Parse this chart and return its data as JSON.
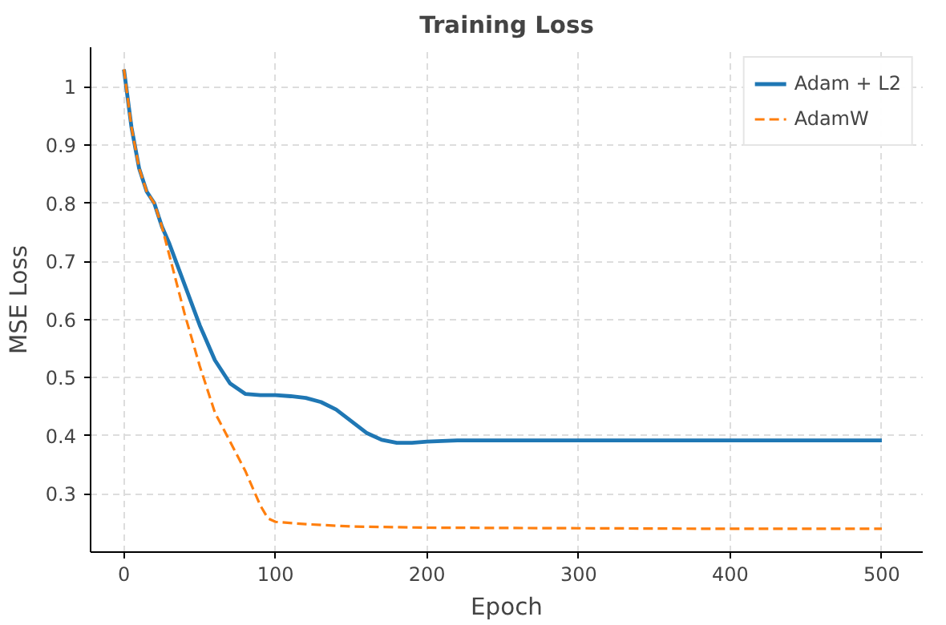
{
  "chart_data": {
    "type": "line",
    "title": "Training Loss",
    "xlabel": "Epoch",
    "ylabel": "MSE Loss",
    "xlim": [
      -22,
      527
    ],
    "ylim": [
      0.2,
      1.068
    ],
    "xticks": [
      0,
      100,
      200,
      300,
      400,
      500
    ],
    "yticks": [
      0.3,
      0.4,
      0.5,
      0.6,
      0.7,
      0.8,
      0.9,
      1.0
    ],
    "grid": true,
    "legend": "top right",
    "series": [
      {
        "name": "Adam + L2",
        "color": "#1f77b4",
        "line_style": "solid",
        "x": [
          0,
          5,
          10,
          15,
          20,
          25,
          30,
          40,
          50,
          60,
          70,
          80,
          90,
          100,
          110,
          120,
          130,
          140,
          150,
          160,
          170,
          180,
          190,
          200,
          220,
          250,
          300,
          400,
          500
        ],
        "values": [
          1.03,
          0.93,
          0.86,
          0.82,
          0.8,
          0.76,
          0.73,
          0.66,
          0.59,
          0.53,
          0.49,
          0.472,
          0.47,
          0.47,
          0.468,
          0.465,
          0.458,
          0.445,
          0.425,
          0.405,
          0.393,
          0.388,
          0.388,
          0.39,
          0.392,
          0.392,
          0.392,
          0.392,
          0.392
        ]
      },
      {
        "name": "AdamW",
        "color": "#ff7f0e",
        "line_style": "dashed",
        "x": [
          0,
          5,
          10,
          15,
          20,
          25,
          30,
          40,
          50,
          60,
          70,
          80,
          90,
          95,
          100,
          120,
          150,
          200,
          300,
          400,
          500
        ],
        "values": [
          1.03,
          0.93,
          0.86,
          0.82,
          0.8,
          0.76,
          0.71,
          0.61,
          0.52,
          0.44,
          0.39,
          0.34,
          0.28,
          0.258,
          0.252,
          0.248,
          0.244,
          0.242,
          0.241,
          0.24,
          0.24
        ]
      }
    ]
  }
}
